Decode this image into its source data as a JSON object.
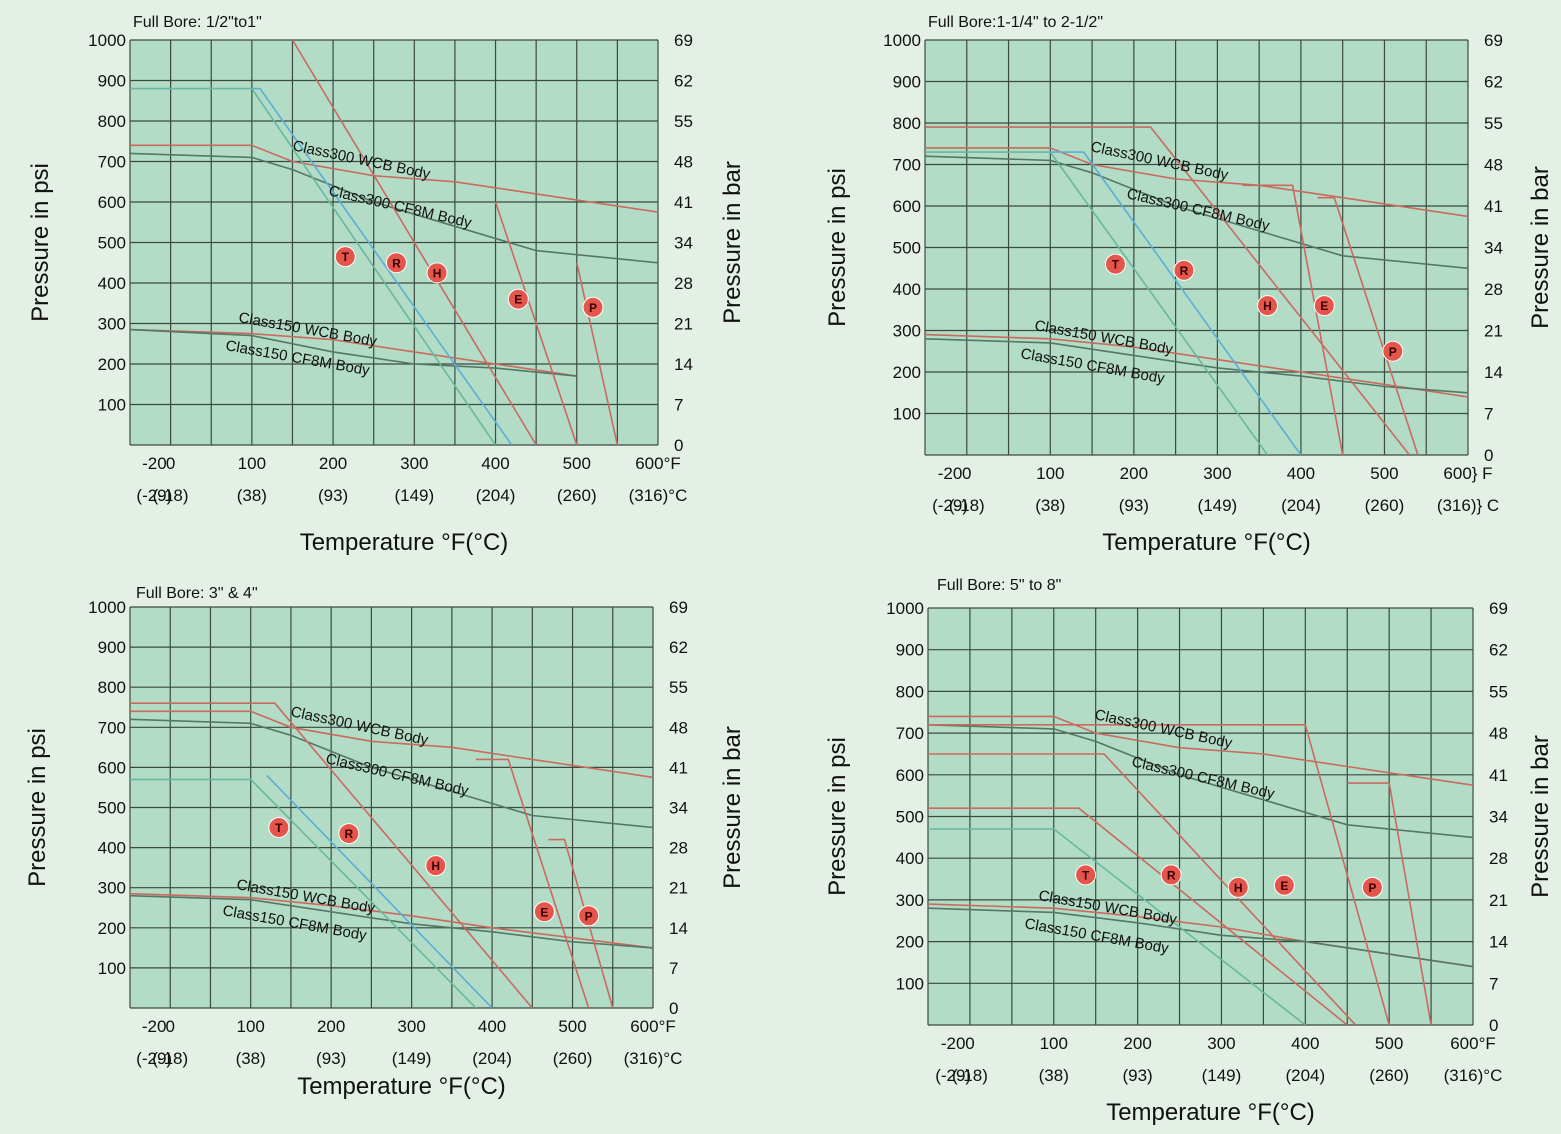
{
  "chart_data": [
    {
      "type": "line",
      "title": "Full Bore: 1/2\"to1\"",
      "ylabel": "Pressure in psi",
      "y2label": "Pressure in bar",
      "xlabel": "Temperature °F(°C)",
      "xlim": [
        -50,
        600
      ],
      "ylim": [
        0,
        1000
      ],
      "x_ticks": [
        {
          "f": "-20",
          "c": "(-29)",
          "v": -20
        },
        {
          "f": "0",
          "c": "(-18)",
          "v": 0
        },
        {
          "f": "100",
          "c": "(38)",
          "v": 100
        },
        {
          "f": "200",
          "c": "(93)",
          "v": 200
        },
        {
          "f": "300",
          "c": "(149)",
          "v": 300
        },
        {
          "f": "400",
          "c": "(204)",
          "v": 400
        },
        {
          "f": "500",
          "c": "(260)",
          "v": 500
        },
        {
          "f": "600°F",
          "c": "(316)°C",
          "v": 600
        }
      ],
      "y_ticks": [
        "100",
        "200",
        "300",
        "400",
        "500",
        "600",
        "700",
        "800",
        "900",
        "1000"
      ],
      "y2_ticks": [
        "0",
        "7",
        "14",
        "21",
        "28",
        "34",
        "41",
        "48",
        "55",
        "62",
        "69"
      ],
      "grid": true,
      "series": [
        {
          "name": "Class300 WCB Body",
          "color": "#c96a60",
          "x": [
            -50,
            100,
            150,
            250,
            350,
            450,
            600
          ],
          "y": [
            740,
            740,
            700,
            665,
            650,
            620,
            575
          ]
        },
        {
          "name": "Class300 CF8M Body",
          "color": "#557766",
          "x": [
            -50,
            100,
            150,
            250,
            300,
            450,
            600
          ],
          "y": [
            720,
            710,
            680,
            600,
            570,
            480,
            450
          ]
        },
        {
          "name": "Class150 WCB Body",
          "color": "#c96a60",
          "x": [
            -50,
            100,
            200,
            300,
            400,
            500
          ],
          "y": [
            285,
            275,
            260,
            230,
            200,
            170
          ]
        },
        {
          "name": "Class150 CF8M Body",
          "color": "#557766",
          "x": [
            -50,
            100,
            200,
            300,
            400,
            500
          ],
          "y": [
            285,
            270,
            230,
            200,
            190,
            170
          ]
        },
        {
          "name": "T",
          "color": "#66b8a0",
          "x": [
            -50,
            100,
            400
          ],
          "y": [
            880,
            880,
            0
          ]
        },
        {
          "name": "R",
          "color": "#5aaed8",
          "x": [
            100,
            110,
            420
          ],
          "y": [
            880,
            880,
            0
          ]
        },
        {
          "name": "H",
          "color": "#c96a60",
          "x": [
            150,
            450
          ],
          "y": [
            1000,
            0
          ]
        },
        {
          "name": "E",
          "color": "#c96a60",
          "x": [
            400,
            500
          ],
          "y": [
            600,
            0
          ]
        },
        {
          "name": "P",
          "color": "#c96a60",
          "x": [
            500,
            550
          ],
          "y": [
            450,
            0
          ]
        }
      ],
      "markers": [
        {
          "label": "T",
          "x": 215,
          "y": 465
        },
        {
          "label": "R",
          "x": 278,
          "y": 450
        },
        {
          "label": "H",
          "x": 328,
          "y": 425
        },
        {
          "label": "E",
          "x": 428,
          "y": 360
        },
        {
          "label": "P",
          "x": 520,
          "y": 340
        }
      ]
    },
    {
      "type": "line",
      "title": "Full Bore:1-1/4\" to 2-1/2\"",
      "ylabel": "Pressure in psi",
      "y2label": "Pressure in bar",
      "xlabel": "Temperature °F(°C)",
      "xlim": [
        -50,
        600
      ],
      "ylim": [
        0,
        1000
      ],
      "x_ticks": [
        {
          "f": "-20",
          "c": "(-29)",
          "v": -20
        },
        {
          "f": "0",
          "c": "(-18)",
          "v": 0
        },
        {
          "f": "100",
          "c": "(38)",
          "v": 100
        },
        {
          "f": "200",
          "c": "(93)",
          "v": 200
        },
        {
          "f": "300",
          "c": "(149)",
          "v": 300
        },
        {
          "f": "400",
          "c": "(204)",
          "v": 400
        },
        {
          "f": "500",
          "c": "(260)",
          "v": 500
        },
        {
          "f": "600} F",
          "c": "(316)} C",
          "v": 600
        }
      ],
      "y_ticks": [
        "100",
        "200",
        "300",
        "400",
        "500",
        "600",
        "700",
        "800",
        "900",
        "1000"
      ],
      "y2_ticks": [
        "0",
        "7",
        "14",
        "21",
        "28",
        "34",
        "41",
        "48",
        "55",
        "62",
        "69"
      ],
      "grid": true,
      "series": [
        {
          "name": "Class300 WCB Body",
          "color": "#c96a60",
          "x": [
            -50,
            100,
            150,
            250,
            350,
            450,
            600
          ],
          "y": [
            740,
            740,
            700,
            665,
            650,
            620,
            575
          ]
        },
        {
          "name": "Class300 CF8M Body",
          "color": "#557766",
          "x": [
            -50,
            100,
            150,
            250,
            300,
            450,
            600
          ],
          "y": [
            720,
            710,
            680,
            600,
            570,
            480,
            450
          ]
        },
        {
          "name": "Class150 WCB Body",
          "color": "#c96a60",
          "x": [
            -50,
            100,
            200,
            300,
            400,
            500,
            600
          ],
          "y": [
            290,
            280,
            260,
            230,
            200,
            170,
            140
          ]
        },
        {
          "name": "Class150 CF8M Body",
          "color": "#557766",
          "x": [
            -50,
            100,
            200,
            300,
            400,
            500,
            600
          ],
          "y": [
            280,
            270,
            240,
            210,
            190,
            165,
            150
          ]
        },
        {
          "name": "T",
          "color": "#66b8a0",
          "x": [
            -50,
            100,
            360
          ],
          "y": [
            730,
            730,
            0
          ]
        },
        {
          "name": "R",
          "color": "#5aaed8",
          "x": [
            100,
            140,
            400
          ],
          "y": [
            730,
            730,
            0
          ]
        },
        {
          "name": "H",
          "color": "#c96a60",
          "x": [
            -50,
            220,
            530
          ],
          "y": [
            790,
            790,
            0
          ]
        },
        {
          "name": "E",
          "color": "#c96a60",
          "x": [
            330,
            390,
            450
          ],
          "y": [
            650,
            650,
            0
          ]
        },
        {
          "name": "P",
          "color": "#c96a60",
          "x": [
            420,
            440,
            540
          ],
          "y": [
            620,
            620,
            0
          ]
        }
      ],
      "markers": [
        {
          "label": "T",
          "x": 178,
          "y": 460
        },
        {
          "label": "R",
          "x": 260,
          "y": 445
        },
        {
          "label": "H",
          "x": 360,
          "y": 360
        },
        {
          "label": "E",
          "x": 428,
          "y": 360
        },
        {
          "label": "P",
          "x": 510,
          "y": 250
        }
      ]
    },
    {
      "type": "line",
      "title": "Full Bore: 3\" & 4\"",
      "ylabel": "Pressure in psi",
      "y2label": "Pressure in bar",
      "xlabel": "Temperature °F(°C)",
      "xlim": [
        -50,
        600
      ],
      "ylim": [
        0,
        1000
      ],
      "x_ticks": [
        {
          "f": "-20",
          "c": "(-29)",
          "v": -20
        },
        {
          "f": "0",
          "c": "(-18)",
          "v": 0
        },
        {
          "f": "100",
          "c": "(38)",
          "v": 100
        },
        {
          "f": "200",
          "c": "(93)",
          "v": 200
        },
        {
          "f": "300",
          "c": "(149)",
          "v": 300
        },
        {
          "f": "400",
          "c": "(204)",
          "v": 400
        },
        {
          "f": "500",
          "c": "(260)",
          "v": 500
        },
        {
          "f": "600°F",
          "c": "(316)°C",
          "v": 600
        }
      ],
      "y_ticks": [
        "100",
        "200",
        "300",
        "400",
        "500",
        "600",
        "700",
        "800",
        "900",
        "1000"
      ],
      "y2_ticks": [
        "0",
        "7",
        "14",
        "21",
        "28",
        "34",
        "41",
        "48",
        "55",
        "62",
        "69"
      ],
      "grid": true,
      "series": [
        {
          "name": "Class300 WCB Body",
          "color": "#c96a60",
          "x": [
            -50,
            100,
            150,
            250,
            350,
            450,
            600
          ],
          "y": [
            740,
            740,
            700,
            665,
            650,
            620,
            575
          ]
        },
        {
          "name": "Class300 CF8M Body",
          "color": "#557766",
          "x": [
            -50,
            100,
            150,
            250,
            300,
            450,
            600
          ],
          "y": [
            720,
            710,
            680,
            600,
            570,
            480,
            450
          ]
        },
        {
          "name": "Class150 WCB Body",
          "color": "#c96a60",
          "x": [
            -50,
            100,
            200,
            300,
            400,
            500,
            600
          ],
          "y": [
            285,
            275,
            255,
            230,
            200,
            175,
            150
          ]
        },
        {
          "name": "Class150 CF8M Body",
          "color": "#557766",
          "x": [
            -50,
            100,
            200,
            300,
            400,
            500,
            600
          ],
          "y": [
            280,
            270,
            240,
            210,
            190,
            165,
            150
          ]
        },
        {
          "name": "T",
          "color": "#66b8a0",
          "x": [
            -50,
            100,
            380
          ],
          "y": [
            570,
            570,
            0
          ]
        },
        {
          "name": "R",
          "color": "#5aaed8",
          "x": [
            120,
            400
          ],
          "y": [
            580,
            0
          ]
        },
        {
          "name": "H",
          "color": "#c96a60",
          "x": [
            -50,
            130,
            450
          ],
          "y": [
            760,
            760,
            0
          ]
        },
        {
          "name": "E",
          "color": "#c96a60",
          "x": [
            380,
            420,
            520
          ],
          "y": [
            620,
            620,
            0
          ]
        },
        {
          "name": "P",
          "color": "#c96a60",
          "x": [
            470,
            490,
            550
          ],
          "y": [
            420,
            420,
            0
          ]
        }
      ],
      "markers": [
        {
          "label": "T",
          "x": 135,
          "y": 450
        },
        {
          "label": "R",
          "x": 222,
          "y": 435
        },
        {
          "label": "H",
          "x": 330,
          "y": 355
        },
        {
          "label": "E",
          "x": 465,
          "y": 240
        },
        {
          "label": "P",
          "x": 520,
          "y": 230
        }
      ]
    },
    {
      "type": "line",
      "title": "Full Bore: 5\" to 8\"",
      "ylabel": "Pressure in psi",
      "y2label": "Pressure in bar",
      "xlabel": "Temperature °F(°C)",
      "xlim": [
        -50,
        600
      ],
      "ylim": [
        0,
        1000
      ],
      "x_ticks": [
        {
          "f": "-20",
          "c": "(-29)",
          "v": -20
        },
        {
          "f": "0",
          "c": "(-18)",
          "v": 0
        },
        {
          "f": "100",
          "c": "(38)",
          "v": 100
        },
        {
          "f": "200",
          "c": "(93)",
          "v": 200
        },
        {
          "f": "300",
          "c": "(149)",
          "v": 300
        },
        {
          "f": "400",
          "c": "(204)",
          "v": 400
        },
        {
          "f": "500",
          "c": "(260)",
          "v": 500
        },
        {
          "f": "600°F",
          "c": "(316)°C",
          "v": 600
        }
      ],
      "y_ticks": [
        "100",
        "200",
        "300",
        "400",
        "500",
        "600",
        "700",
        "800",
        "900",
        "1000"
      ],
      "y2_ticks": [
        "0",
        "7",
        "14",
        "21",
        "28",
        "34",
        "41",
        "48",
        "55",
        "62",
        "69"
      ],
      "grid": true,
      "series": [
        {
          "name": "Class300 WCB Body",
          "color": "#c96a60",
          "x": [
            -50,
            100,
            150,
            250,
            350,
            450,
            600
          ],
          "y": [
            740,
            740,
            700,
            665,
            650,
            620,
            575
          ]
        },
        {
          "name": "Class300 CF8M Body",
          "color": "#557766",
          "x": [
            -50,
            100,
            150,
            250,
            300,
            450,
            600
          ],
          "y": [
            720,
            710,
            680,
            600,
            570,
            480,
            450
          ]
        },
        {
          "name": "Class150 WCB Body",
          "color": "#c96a60",
          "x": [
            -50,
            100,
            200,
            300,
            400,
            500,
            600
          ],
          "y": [
            290,
            280,
            260,
            235,
            200,
            170,
            140
          ]
        },
        {
          "name": "Class150 CF8M Body",
          "color": "#557766",
          "x": [
            -50,
            100,
            200,
            300,
            400,
            500,
            600
          ],
          "y": [
            280,
            270,
            245,
            215,
            200,
            170,
            140
          ]
        },
        {
          "name": "T",
          "color": "#66b8a0",
          "x": [
            -50,
            100,
            400
          ],
          "y": [
            470,
            470,
            0
          ]
        },
        {
          "name": "R",
          "color": "#c96a60",
          "x": [
            -50,
            130,
            450
          ],
          "y": [
            520,
            520,
            0
          ]
        },
        {
          "name": "H",
          "color": "#c96a60",
          "x": [
            -50,
            160,
            460
          ],
          "y": [
            650,
            650,
            0
          ]
        },
        {
          "name": "E",
          "color": "#c96a60",
          "x": [
            -50,
            400,
            500
          ],
          "y": [
            720,
            720,
            0
          ]
        },
        {
          "name": "P",
          "color": "#c96a60",
          "x": [
            450,
            500,
            550
          ],
          "y": [
            580,
            580,
            0
          ]
        }
      ],
      "markers": [
        {
          "label": "T",
          "x": 138,
          "y": 360
        },
        {
          "label": "R",
          "x": 240,
          "y": 360
        },
        {
          "label": "H",
          "x": 320,
          "y": 330
        },
        {
          "label": "E",
          "x": 375,
          "y": 335
        },
        {
          "label": "P",
          "x": 480,
          "y": 330
        }
      ]
    }
  ],
  "colors": {
    "plot_bg": "#b3dcc6",
    "page_bg": "#e4efe6",
    "grid": "#3a4a40",
    "marker_fill": "#e4554c"
  }
}
